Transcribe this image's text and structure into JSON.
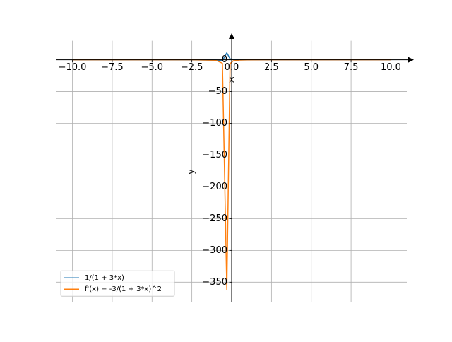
{
  "chart_data": {
    "type": "line",
    "x_label": "x",
    "y_label": "y",
    "x": [
      -10,
      -7.5,
      -5,
      -2.5,
      -1,
      -0.58,
      -0.303,
      -0.1,
      0.1,
      0.5,
      1,
      2.5,
      5,
      7.5,
      10
    ],
    "series": [
      {
        "name": "1/(1 + 3*x)",
        "color": "#1f77b4",
        "values": [
          -0.0345,
          -0.0465,
          -0.0714,
          -0.1538,
          -0.5,
          -1.351,
          10.99,
          1.429,
          0.769,
          0.4,
          0.25,
          0.1176,
          0.0625,
          0.0426,
          0.0323
        ]
      },
      {
        "name": "f'(x) = -3/(1 + 3*x)^2",
        "color": "#ff7f0e",
        "values": [
          -0.00357,
          -0.00649,
          -0.0153,
          -0.071,
          -0.75,
          -5.478,
          -362.3,
          -6.122,
          -1.775,
          -0.48,
          -0.1875,
          -0.0415,
          -0.0117,
          -0.00543,
          -0.00312
        ]
      }
    ],
    "xlim": [
      -11,
      11
    ],
    "ylim": [
      -381,
      30
    ],
    "xticks": [
      {
        "value": -10,
        "label": "−10.0"
      },
      {
        "value": -7.5,
        "label": "−7.5"
      },
      {
        "value": -5,
        "label": "−5.0"
      },
      {
        "value": -2.5,
        "label": "−2.5"
      },
      {
        "value": 0,
        "label": "0.0"
      },
      {
        "value": 2.5,
        "label": "2.5"
      },
      {
        "value": 5,
        "label": "5.0"
      },
      {
        "value": 7.5,
        "label": "7.5"
      },
      {
        "value": 10,
        "label": "10.0"
      }
    ],
    "yticks": [
      {
        "value": -350,
        "label": "−350"
      },
      {
        "value": -300,
        "label": "−300"
      },
      {
        "value": -250,
        "label": "−250"
      },
      {
        "value": -200,
        "label": "−200"
      },
      {
        "value": -150,
        "label": "−150"
      },
      {
        "value": -100,
        "label": "−100"
      },
      {
        "value": -50,
        "label": "−50"
      },
      0
    ],
    "grid": true,
    "legend": "lower left"
  }
}
